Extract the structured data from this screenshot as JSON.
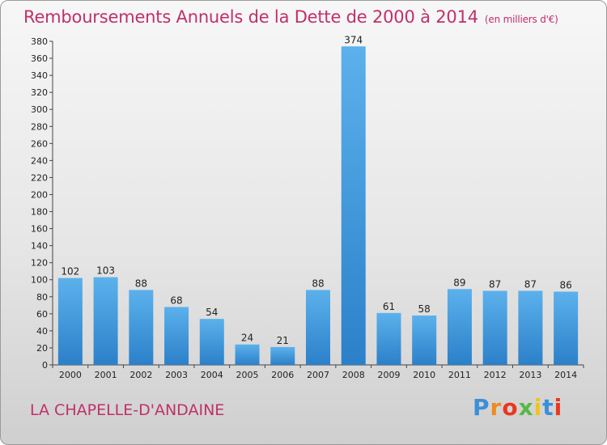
{
  "title": "Remboursements Annuels de la Dette de 2000 à 2014",
  "unit": "(en milliers d'€)",
  "commune": "LA CHAPELLE-D'ANDAINE",
  "logo": {
    "letters": [
      "P",
      "r",
      "o",
      "x",
      "i",
      "t",
      "i"
    ],
    "colors": [
      "#3a8fd8",
      "#f08a1c",
      "#e8381e",
      "#57b847",
      "#f0c419",
      "#3a8fd8",
      "#e8381e"
    ]
  },
  "colors": {
    "title": "#c0306a",
    "bar": "#3f97dd"
  },
  "chart_data": {
    "type": "bar",
    "title": "Remboursements Annuels de la Dette de 2000 à 2014",
    "categories": [
      "2000",
      "2001",
      "2002",
      "2003",
      "2004",
      "2005",
      "2006",
      "2007",
      "2008",
      "2009",
      "2010",
      "2011",
      "2012",
      "2013",
      "2014"
    ],
    "values": [
      102,
      103,
      88,
      68,
      54,
      24,
      21,
      88,
      374,
      61,
      58,
      89,
      87,
      87,
      86
    ],
    "ylim": [
      0,
      380
    ],
    "yticks": [
      0,
      20,
      40,
      60,
      80,
      100,
      120,
      140,
      160,
      180,
      200,
      220,
      240,
      260,
      280,
      300,
      320,
      340,
      360,
      380
    ],
    "grid": false,
    "legend": "none"
  }
}
